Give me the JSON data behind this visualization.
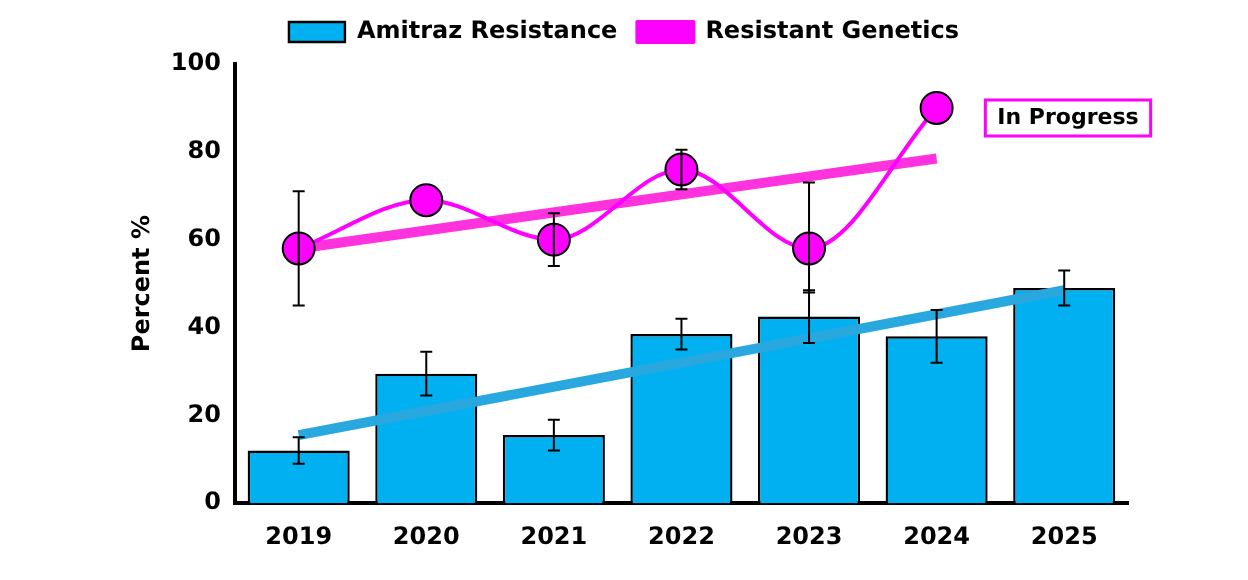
{
  "chart_data": {
    "type": "bar",
    "ylabel": "Percent %",
    "categories": [
      "2019",
      "2020",
      "2021",
      "2022",
      "2023",
      "2024",
      "2025"
    ],
    "series": [
      {
        "name": "Amitraz Resistance",
        "color": "#00b0f0",
        "values": [
          12,
          29.5,
          15.5,
          38.5,
          42.5,
          38,
          49
        ],
        "errors": [
          3,
          5,
          3.5,
          3.5,
          6,
          6,
          4
        ]
      },
      {
        "name": "Resistant Genetics",
        "type": "line",
        "color": "#ff00ff",
        "marker": "circle",
        "values": [
          58,
          69,
          60,
          76,
          58,
          90,
          null
        ],
        "errors": [
          13,
          null,
          6,
          4.5,
          [
            48,
            73
          ],
          null,
          null
        ]
      },
      {
        "type": "line",
        "color": "#ff33dd",
        "marker": "none",
        "values": [
          58,
          null,
          null,
          null,
          null,
          78.5,
          null
        ]
      },
      {
        "type": "line",
        "color": "#29a8e0",
        "marker": "none",
        "values": [
          15.5,
          null,
          null,
          null,
          null,
          null,
          48.5
        ]
      }
    ],
    "ylim": [
      0,
      100
    ],
    "yticks": [
      0,
      20,
      40,
      60,
      80,
      100
    ],
    "grid": false,
    "legend": "top",
    "annotations": [
      "In Progress"
    ]
  }
}
